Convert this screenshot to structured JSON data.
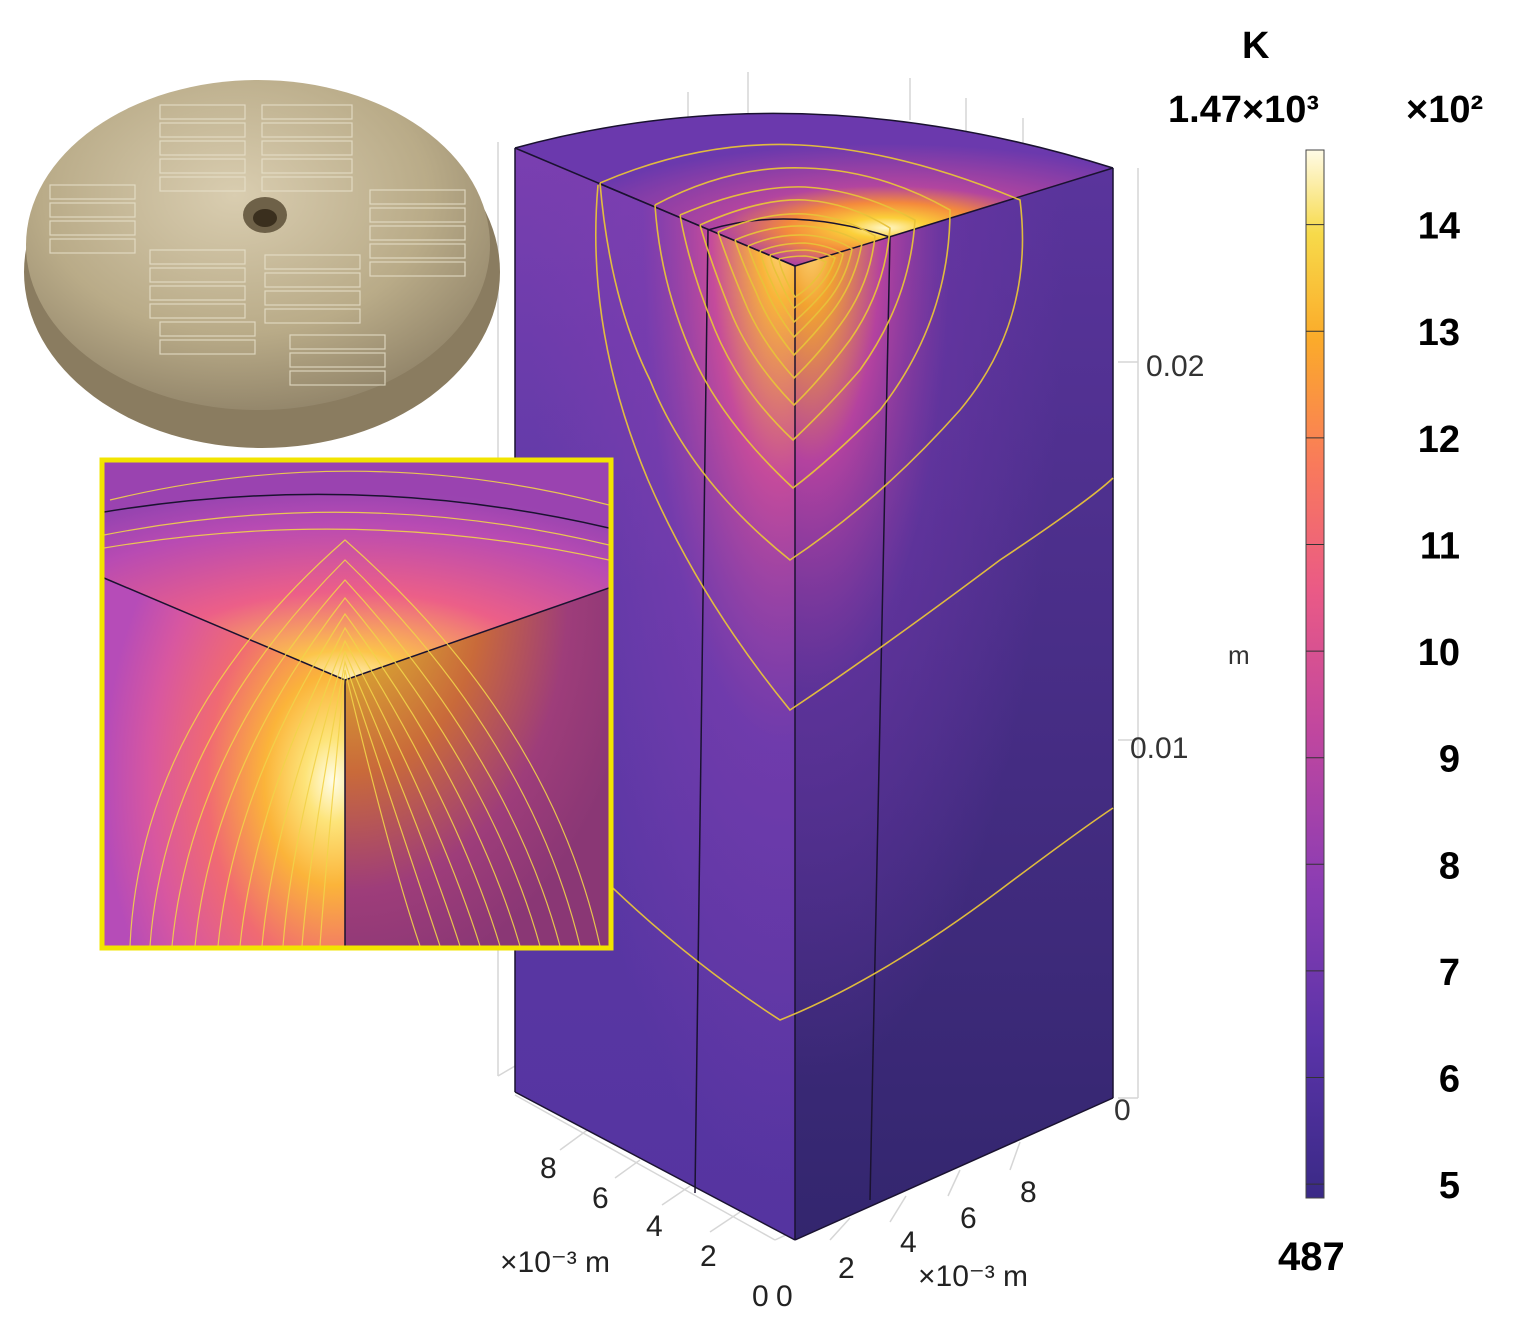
{
  "figure": {
    "colorbar": {
      "unit": "K",
      "max_label": "1.47×10³",
      "min_label": "487",
      "multiplier": "×10²",
      "ticks": [
        "14",
        "13",
        "12",
        "11",
        "10",
        "9",
        "8",
        "7",
        "6",
        "5"
      ],
      "range_k": [
        487,
        1470
      ],
      "colormap": "plasma"
    },
    "z_axis": {
      "ticks": [
        "0.02",
        "0.01",
        "0"
      ],
      "unit": "m"
    },
    "left_axis": {
      "ticks": [
        "8",
        "6",
        "4",
        "2",
        "0"
      ],
      "unit": "×10⁻³ m"
    },
    "right_axis": {
      "ticks": [
        "0",
        "2",
        "4",
        "6",
        "8"
      ],
      "unit": "×10⁻³ m"
    },
    "inset_frame_color": "#f2e400",
    "photo": {
      "description_icon": "plate-photo"
    }
  }
}
